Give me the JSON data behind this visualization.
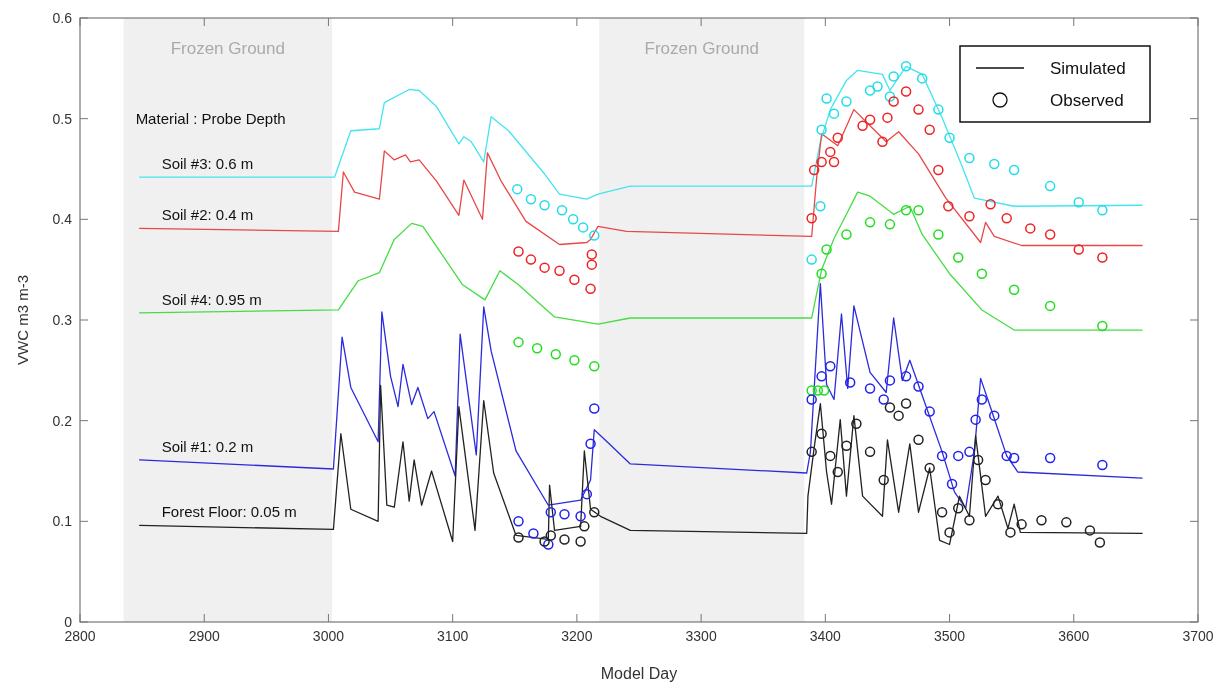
{
  "chart_data": {
    "type": "line",
    "xlabel": "Model Day",
    "ylabel": "VWC m3 m-3",
    "xlim": [
      2800,
      3700
    ],
    "xticks": [
      2800,
      2900,
      3000,
      3100,
      3200,
      3300,
      3400,
      3500,
      3600,
      3700
    ],
    "ylim": [
      0,
      0.6
    ],
    "yticks": [
      0,
      0.1,
      0.2,
      0.3,
      0.4,
      0.5,
      0.6
    ],
    "grid": false,
    "legend": "left",
    "annotations": [
      "Material : Probe Depth",
      "Simulated",
      "Observed"
    ],
    "bands": [
      {
        "axis": "x",
        "from": 2835,
        "to": 3003,
        "label": "Frozen Ground",
        "color": "#f0f0f0"
      },
      {
        "axis": "x",
        "from": 3218,
        "to": 3383,
        "label": "Frozen Ground",
        "color": "#f0f0f0"
      }
    ],
    "series": [
      {
        "name": "Soil #3: 0.6 m",
        "marker": "none",
        "color": "#44e4f0",
        "x": [
          2848,
          3005,
          3018,
          3041,
          3045,
          3065,
          3073,
          3087,
          3105,
          3109,
          3115,
          3125,
          3131,
          3145,
          3174,
          3186,
          3208,
          3217,
          3243,
          3389,
          3396,
          3404,
          3417,
          3426,
          3446,
          3452,
          3465,
          3478,
          3494,
          3510,
          3520,
          3552,
          3655
        ],
        "values": [
          0.442,
          0.442,
          0.488,
          0.49,
          0.516,
          0.529,
          0.528,
          0.512,
          0.475,
          0.482,
          0.477,
          0.457,
          0.502,
          0.488,
          0.445,
          0.425,
          0.42,
          0.425,
          0.433,
          0.433,
          0.477,
          0.509,
          0.538,
          0.548,
          0.544,
          0.528,
          0.552,
          0.544,
          0.501,
          0.453,
          0.421,
          0.413,
          0.414
        ]
      },
      {
        "name": "Soil #2: 0.4 m",
        "marker": "none",
        "color": "#e84848",
        "x": [
          2848,
          3008,
          3012,
          3021,
          3041,
          3045,
          3053,
          3062,
          3066,
          3073,
          3087,
          3105,
          3109,
          3124,
          3128,
          3139,
          3159,
          3186,
          3208,
          3211,
          3217,
          3240,
          3389,
          3393,
          3397,
          3410,
          3423,
          3436,
          3449,
          3459,
          3475,
          3497,
          3525,
          3529,
          3536,
          3558,
          3655
        ],
        "values": [
          0.391,
          0.388,
          0.447,
          0.427,
          0.42,
          0.468,
          0.459,
          0.464,
          0.457,
          0.459,
          0.438,
          0.404,
          0.439,
          0.4,
          0.466,
          0.438,
          0.398,
          0.375,
          0.377,
          0.38,
          0.393,
          0.388,
          0.383,
          0.441,
          0.485,
          0.473,
          0.509,
          0.493,
          0.477,
          0.487,
          0.465,
          0.421,
          0.377,
          0.397,
          0.383,
          0.374,
          0.374
        ]
      },
      {
        "name": "Soil #4: 0.95 m",
        "marker": "none",
        "color": "#44dd44",
        "x": [
          2848,
          3008,
          3024,
          3041,
          3053,
          3067,
          3076,
          3108,
          3126,
          3138,
          3153,
          3182,
          3217,
          3243,
          3389,
          3397,
          3407,
          3417,
          3426,
          3436,
          3455,
          3468,
          3478,
          3500,
          3526,
          3552,
          3655
        ],
        "values": [
          0.307,
          0.31,
          0.339,
          0.347,
          0.38,
          0.396,
          0.393,
          0.335,
          0.32,
          0.349,
          0.335,
          0.303,
          0.296,
          0.302,
          0.302,
          0.35,
          0.381,
          0.405,
          0.427,
          0.423,
          0.405,
          0.413,
          0.385,
          0.346,
          0.31,
          0.29,
          0.29
        ]
      },
      {
        "name": "Soil #1: 0.2 m",
        "marker": "none",
        "color": "#2b2bdd",
        "x": [
          2848,
          3004,
          3011,
          3018,
          3040,
          3043,
          3050,
          3056,
          3060,
          3067,
          3072,
          3080,
          3085,
          3102,
          3106,
          3119,
          3125,
          3131,
          3151,
          3177,
          3203,
          3211,
          3214,
          3226,
          3243,
          3385,
          3388,
          3396,
          3401,
          3407,
          3413,
          3418,
          3423,
          3436,
          3449,
          3455,
          3462,
          3468,
          3478,
          3494,
          3504,
          3513,
          3520,
          3525,
          3533,
          3546,
          3555,
          3655
        ],
        "values": [
          0.161,
          0.152,
          0.283,
          0.233,
          0.179,
          0.308,
          0.244,
          0.214,
          0.256,
          0.216,
          0.233,
          0.202,
          0.209,
          0.145,
          0.286,
          0.166,
          0.313,
          0.269,
          0.17,
          0.116,
          0.121,
          0.141,
          0.191,
          0.177,
          0.157,
          0.148,
          0.169,
          0.336,
          0.236,
          0.221,
          0.306,
          0.232,
          0.314,
          0.248,
          0.228,
          0.302,
          0.24,
          0.26,
          0.225,
          0.169,
          0.129,
          0.113,
          0.169,
          0.242,
          0.213,
          0.165,
          0.149,
          0.143
        ]
      },
      {
        "name": "Forest Floor:  0.05 m",
        "marker": "none",
        "color": "#222222",
        "x": [
          2848,
          3004,
          3010,
          3018,
          3040,
          3042,
          3047,
          3053,
          3060,
          3065,
          3069,
          3075,
          3083,
          3100,
          3105,
          3118,
          3125,
          3133,
          3151,
          3177,
          3178,
          3182,
          3203,
          3206,
          3211,
          3219,
          3243,
          3385,
          3386,
          3391,
          3396,
          3401,
          3405,
          3412,
          3417,
          3423,
          3430,
          3446,
          3450,
          3459,
          3468,
          3475,
          3484,
          3492,
          3500,
          3508,
          3516,
          3521,
          3529,
          3539,
          3547,
          3552,
          3557,
          3655
        ],
        "values": [
          0.096,
          0.092,
          0.187,
          0.112,
          0.1,
          0.235,
          0.116,
          0.114,
          0.179,
          0.12,
          0.161,
          0.116,
          0.15,
          0.08,
          0.214,
          0.091,
          0.22,
          0.148,
          0.086,
          0.082,
          0.136,
          0.091,
          0.095,
          0.17,
          0.112,
          0.105,
          0.091,
          0.088,
          0.125,
          0.173,
          0.217,
          0.149,
          0.117,
          0.201,
          0.125,
          0.205,
          0.125,
          0.105,
          0.181,
          0.109,
          0.177,
          0.109,
          0.153,
          0.081,
          0.077,
          0.125,
          0.105,
          0.185,
          0.105,
          0.125,
          0.093,
          0.117,
          0.089,
          0.088
        ]
      },
      {
        "type": "scatter",
        "marker": "circle",
        "color": "#22dde8",
        "x": [
          3152,
          3163,
          3174,
          3188,
          3197,
          3205,
          3214,
          3389,
          3396,
          3397,
          3401,
          3407,
          3417,
          3436,
          3442,
          3452,
          3455,
          3465,
          3478,
          3491,
          3500,
          3516,
          3536,
          3552,
          3581,
          3604,
          3623
        ],
        "values": [
          0.43,
          0.42,
          0.414,
          0.409,
          0.4,
          0.392,
          0.384,
          0.36,
          0.413,
          0.489,
          0.52,
          0.505,
          0.517,
          0.528,
          0.532,
          0.522,
          0.542,
          0.552,
          0.54,
          0.509,
          0.481,
          0.461,
          0.455,
          0.449,
          0.433,
          0.417,
          0.409
        ]
      },
      {
        "type": "scatter",
        "marker": "circle",
        "color": "#ee2222",
        "x": [
          3153,
          3163,
          3174,
          3186,
          3198,
          3211,
          3212,
          3212,
          3389,
          3391,
          3397,
          3404,
          3407,
          3410,
          3430,
          3436,
          3446,
          3450,
          3455,
          3465,
          3475,
          3484,
          3491,
          3499,
          3516,
          3533,
          3546,
          3565,
          3581,
          3604,
          3623
        ],
        "values": [
          0.368,
          0.36,
          0.352,
          0.349,
          0.34,
          0.331,
          0.365,
          0.355,
          0.401,
          0.449,
          0.457,
          0.467,
          0.457,
          0.481,
          0.493,
          0.499,
          0.477,
          0.501,
          0.517,
          0.527,
          0.509,
          0.489,
          0.449,
          0.413,
          0.403,
          0.415,
          0.401,
          0.391,
          0.385,
          0.37,
          0.362
        ]
      },
      {
        "type": "scatter",
        "marker": "circle",
        "color": "#22dd22",
        "x": [
          3153,
          3168,
          3183,
          3198,
          3214,
          3389,
          3394,
          3399,
          3397,
          3401,
          3417,
          3436,
          3452,
          3465,
          3475,
          3491,
          3507,
          3526,
          3552,
          3581,
          3623
        ],
        "values": [
          0.278,
          0.272,
          0.266,
          0.26,
          0.254,
          0.23,
          0.23,
          0.23,
          0.346,
          0.37,
          0.385,
          0.397,
          0.395,
          0.409,
          0.409,
          0.385,
          0.362,
          0.346,
          0.33,
          0.314,
          0.294
        ]
      },
      {
        "type": "scatter",
        "marker": "circle",
        "color": "#2222ee",
        "x": [
          3153,
          3165,
          3177,
          3179,
          3190,
          3203,
          3208,
          3211,
          3214,
          3389,
          3397,
          3404,
          3420,
          3436,
          3447,
          3452,
          3465,
          3475,
          3484,
          3494,
          3502,
          3507,
          3516,
          3521,
          3526,
          3536,
          3546,
          3552,
          3581,
          3623
        ],
        "values": [
          0.1,
          0.088,
          0.077,
          0.109,
          0.107,
          0.105,
          0.127,
          0.177,
          0.212,
          0.221,
          0.244,
          0.254,
          0.238,
          0.232,
          0.221,
          0.24,
          0.244,
          0.234,
          0.209,
          0.165,
          0.137,
          0.165,
          0.169,
          0.201,
          0.221,
          0.205,
          0.165,
          0.163,
          0.163,
          0.156
        ]
      },
      {
        "type": "scatter",
        "marker": "circle",
        "color": "#222222",
        "x": [
          3153,
          3174,
          3179,
          3190,
          3203,
          3206,
          3214,
          3389,
          3397,
          3404,
          3410,
          3417,
          3425,
          3436,
          3447,
          3452,
          3459,
          3465,
          3475,
          3484,
          3494,
          3500,
          3507,
          3516,
          3523,
          3529,
          3539,
          3549,
          3558,
          3574,
          3594,
          3613,
          3621
        ],
        "values": [
          0.084,
          0.08,
          0.086,
          0.082,
          0.08,
          0.095,
          0.109,
          0.169,
          0.187,
          0.165,
          0.149,
          0.175,
          0.197,
          0.169,
          0.141,
          0.213,
          0.205,
          0.217,
          0.181,
          0.153,
          0.109,
          0.089,
          0.113,
          0.101,
          0.161,
          0.141,
          0.117,
          0.089,
          0.097,
          0.101,
          0.099,
          0.091,
          0.079
        ]
      }
    ]
  }
}
